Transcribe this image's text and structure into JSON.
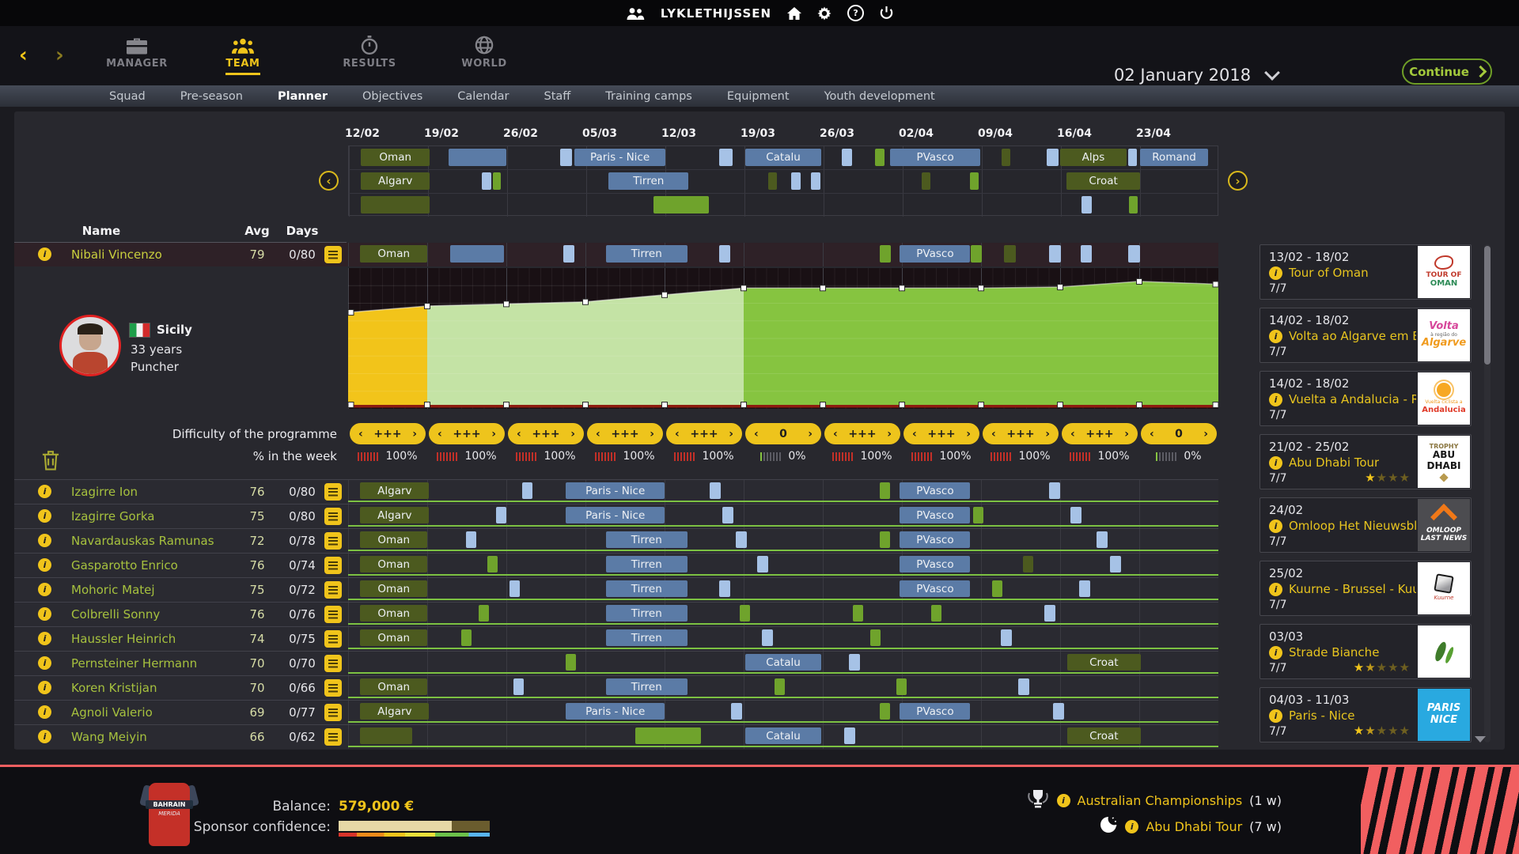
{
  "topbar": {
    "username": "LYKLETHIJSSEN"
  },
  "nav": {
    "back_glyph": "‹",
    "forward_glyph": "›",
    "items": [
      {
        "label": "MANAGER"
      },
      {
        "label": "TEAM"
      },
      {
        "label": "RESULTS"
      },
      {
        "label": "WORLD"
      }
    ],
    "date": "02 January 2018",
    "continue_label": "Continue"
  },
  "subnav": {
    "items": [
      "Squad",
      "Pre-season",
      "Planner",
      "Objectives",
      "Calendar",
      "Staff",
      "Training camps",
      "Equipment",
      "Youth development"
    ],
    "active": "Planner"
  },
  "timeline": {
    "prev_glyph": "‹",
    "next_glyph": "›",
    "weeks": [
      "12/02",
      "19/02",
      "26/02",
      "05/03",
      "12/03",
      "19/03",
      "26/03",
      "02/04",
      "09/04",
      "16/04",
      "23/04"
    ]
  },
  "mini_timeline": {
    "rows": [
      [
        {
          "l": 1.4,
          "w": 7.9,
          "c": "dg",
          "label": "Oman"
        },
        {
          "l": 11.5,
          "w": 6.6,
          "c": "bl"
        },
        {
          "l": 24.3,
          "w": 1.4,
          "c": "lb"
        },
        {
          "l": 26.0,
          "w": 10.4,
          "c": "bl",
          "label": "Paris - Nice"
        },
        {
          "l": 42.6,
          "w": 1.6,
          "c": "lb"
        },
        {
          "l": 45.6,
          "w": 8.8,
          "c": "bl",
          "label": "Catalu"
        },
        {
          "l": 56.7,
          "w": 1.2,
          "c": "lb"
        },
        {
          "l": 60.6,
          "w": 1.1,
          "c": "g"
        },
        {
          "l": 62.3,
          "w": 10.4,
          "c": "bl",
          "label": "PVasco"
        },
        {
          "l": 75.1,
          "w": 1.0,
          "c": "dg"
        },
        {
          "l": 80.3,
          "w": 1.4,
          "c": "lb"
        },
        {
          "l": 81.9,
          "w": 7.6,
          "c": "dg",
          "label": "Alps"
        },
        {
          "l": 89.7,
          "w": 1.0,
          "c": "lb"
        },
        {
          "l": 91.1,
          "w": 7.8,
          "c": "bl",
          "label": "Romand"
        }
      ],
      [
        {
          "l": 1.4,
          "w": 7.9,
          "c": "dg",
          "label": "Algarv"
        },
        {
          "l": 15.3,
          "w": 1.1,
          "c": "lb"
        },
        {
          "l": 16.6,
          "w": 0.9,
          "c": "g"
        },
        {
          "l": 29.9,
          "w": 9.2,
          "c": "bl",
          "label": "Tirren"
        },
        {
          "l": 48.3,
          "w": 1.0,
          "c": "dg"
        },
        {
          "l": 50.9,
          "w": 1.1,
          "c": "lb"
        },
        {
          "l": 53.2,
          "w": 1.1,
          "c": "lb"
        },
        {
          "l": 65.9,
          "w": 1.0,
          "c": "dg"
        },
        {
          "l": 71.5,
          "w": 1.0,
          "c": "g"
        },
        {
          "l": 82.6,
          "w": 8.5,
          "c": "dg",
          "label": "Croat"
        }
      ],
      [
        {
          "l": 1.4,
          "w": 7.9,
          "c": "dg"
        },
        {
          "l": 35.1,
          "w": 6.3,
          "c": "g"
        },
        {
          "l": 84.3,
          "w": 1.2,
          "c": "lb"
        },
        {
          "l": 89.8,
          "w": 1.0,
          "c": "g"
        }
      ]
    ]
  },
  "roster": {
    "columns": [
      "Name",
      "Avg",
      "Days"
    ]
  },
  "selected_rider": {
    "name": "Nibali Vincenzo",
    "avg": "79",
    "days": "0/80",
    "region": "Sicily",
    "age": "33 years",
    "type": "Puncher",
    "bars": [
      {
        "l": 1.4,
        "w": 7.7,
        "c": "dg",
        "label": "Oman"
      },
      {
        "l": 11.7,
        "w": 6.2,
        "c": "bl"
      },
      {
        "l": 24.7,
        "w": 1.3,
        "c": "lb"
      },
      {
        "l": 29.6,
        "w": 9.4,
        "c": "bl",
        "label": "Tirren"
      },
      {
        "l": 42.6,
        "w": 1.3,
        "c": "lb"
      },
      {
        "l": 61.1,
        "w": 1.3,
        "c": "g"
      },
      {
        "l": 63.4,
        "w": 8.1,
        "c": "bl",
        "label": "PVasco"
      },
      {
        "l": 71.5,
        "w": 1.3,
        "c": "g"
      },
      {
        "l": 75.4,
        "w": 1.3,
        "c": "dg"
      },
      {
        "l": 80.5,
        "w": 1.4,
        "c": "lb"
      },
      {
        "l": 84.2,
        "w": 1.3,
        "c": "lb"
      },
      {
        "l": 89.6,
        "w": 1.4,
        "c": "lb"
      }
    ],
    "chart": {
      "points": [
        0.685,
        0.73,
        0.745,
        0.76,
        0.81,
        0.858,
        0.858,
        0.858,
        0.858,
        0.865,
        0.905,
        0.885
      ],
      "colors": [
        "y",
        "lg",
        "lg",
        "lg",
        "lg",
        "g",
        "g",
        "g",
        "g",
        "g",
        "g"
      ]
    }
  },
  "difficulty": {
    "label": "Difficulty of the programme",
    "prev_glyph": "‹",
    "next_glyph": "›",
    "values": [
      "+++",
      "+++",
      "+++",
      "+++",
      "+++",
      "0",
      "+++",
      "+++",
      "+++",
      "+++",
      "0"
    ]
  },
  "week_percent": {
    "label": "% in the week",
    "values": [
      "100%",
      "100%",
      "100%",
      "100%",
      "100%",
      "0%",
      "100%",
      "100%",
      "100%",
      "100%",
      "0%"
    ]
  },
  "riders": [
    {
      "name": "Izagirre Ion",
      "avg": "76",
      "days": "0/80",
      "bars": [
        {
          "l": 1.4,
          "w": 7.9,
          "c": "dg",
          "label": "Algarv"
        },
        {
          "l": 20,
          "w": 1.2,
          "c": "lb"
        },
        {
          "l": 25,
          "w": 11.4,
          "c": "bl",
          "label": "Paris - Nice"
        },
        {
          "l": 41.5,
          "w": 1.3,
          "c": "lb"
        },
        {
          "l": 61.1,
          "w": 1.2,
          "c": "g"
        },
        {
          "l": 63.4,
          "w": 8.1,
          "c": "bl",
          "label": "PVasco"
        },
        {
          "l": 80.5,
          "w": 1.3,
          "c": "lb"
        }
      ]
    },
    {
      "name": "Izagirre Gorka",
      "avg": "75",
      "days": "0/80",
      "bars": [
        {
          "l": 1.4,
          "w": 7.9,
          "c": "dg",
          "label": "Algarv"
        },
        {
          "l": 17,
          "w": 1.2,
          "c": "lb"
        },
        {
          "l": 25,
          "w": 11.4,
          "c": "bl",
          "label": "Paris - Nice"
        },
        {
          "l": 43,
          "w": 1.3,
          "c": "lb"
        },
        {
          "l": 63.4,
          "w": 8.1,
          "c": "bl",
          "label": "PVasco"
        },
        {
          "l": 71.8,
          "w": 1.2,
          "c": "g"
        },
        {
          "l": 83,
          "w": 1.3,
          "c": "lb"
        }
      ]
    },
    {
      "name": "Navardauskas Ramunas",
      "avg": "72",
      "days": "0/78",
      "bars": [
        {
          "l": 1.4,
          "w": 7.7,
          "c": "dg",
          "label": "Oman"
        },
        {
          "l": 13.5,
          "w": 1.2,
          "c": "lb"
        },
        {
          "l": 29.6,
          "w": 9.4,
          "c": "bl",
          "label": "Tirren"
        },
        {
          "l": 44.5,
          "w": 1.3,
          "c": "lb"
        },
        {
          "l": 61.1,
          "w": 1.2,
          "c": "g"
        },
        {
          "l": 63.4,
          "w": 8.1,
          "c": "bl",
          "label": "PVasco"
        },
        {
          "l": 86,
          "w": 1.3,
          "c": "lb"
        }
      ]
    },
    {
      "name": "Gasparotto Enrico",
      "avg": "76",
      "days": "0/74",
      "bars": [
        {
          "l": 1.4,
          "w": 7.7,
          "c": "dg",
          "label": "Oman"
        },
        {
          "l": 16,
          "w": 1.2,
          "c": "g"
        },
        {
          "l": 29.6,
          "w": 9.4,
          "c": "bl",
          "label": "Tirren"
        },
        {
          "l": 47,
          "w": 1.3,
          "c": "lb"
        },
        {
          "l": 63.4,
          "w": 8.1,
          "c": "bl",
          "label": "PVasco"
        },
        {
          "l": 77.5,
          "w": 1.2,
          "c": "dg"
        },
        {
          "l": 87.5,
          "w": 1.3,
          "c": "lb"
        }
      ]
    },
    {
      "name": "Mohoric Matej",
      "avg": "75",
      "days": "0/72",
      "bars": [
        {
          "l": 1.4,
          "w": 7.7,
          "c": "dg",
          "label": "Oman"
        },
        {
          "l": 18.5,
          "w": 1.2,
          "c": "lb"
        },
        {
          "l": 29.6,
          "w": 9.4,
          "c": "bl",
          "label": "Tirren"
        },
        {
          "l": 42.6,
          "w": 1.3,
          "c": "lb"
        },
        {
          "l": 63.4,
          "w": 8.1,
          "c": "bl",
          "label": "PVasco"
        },
        {
          "l": 74,
          "w": 1.2,
          "c": "g"
        },
        {
          "l": 84,
          "w": 1.3,
          "c": "lb"
        }
      ]
    },
    {
      "name": "Colbrelli Sonny",
      "avg": "76",
      "days": "0/76",
      "bars": [
        {
          "l": 1.4,
          "w": 7.7,
          "c": "dg",
          "label": "Oman"
        },
        {
          "l": 15,
          "w": 1.2,
          "c": "g"
        },
        {
          "l": 29.6,
          "w": 9.4,
          "c": "bl",
          "label": "Tirren"
        },
        {
          "l": 45,
          "w": 1.2,
          "c": "g"
        },
        {
          "l": 58,
          "w": 1.2,
          "c": "g"
        },
        {
          "l": 67,
          "w": 1.2,
          "c": "g"
        },
        {
          "l": 80,
          "w": 1.3,
          "c": "lb"
        }
      ]
    },
    {
      "name": "Haussler Heinrich",
      "avg": "74",
      "days": "0/75",
      "bars": [
        {
          "l": 1.4,
          "w": 7.7,
          "c": "dg",
          "label": "Oman"
        },
        {
          "l": 13,
          "w": 1.2,
          "c": "g"
        },
        {
          "l": 29.6,
          "w": 9.4,
          "c": "bl",
          "label": "Tirren"
        },
        {
          "l": 47.5,
          "w": 1.3,
          "c": "lb"
        },
        {
          "l": 60,
          "w": 1.2,
          "c": "g"
        },
        {
          "l": 75,
          "w": 1.3,
          "c": "lb"
        }
      ]
    },
    {
      "name": "Pernsteiner Hermann",
      "avg": "70",
      "days": "0/70",
      "bars": [
        {
          "l": 25,
          "w": 1.2,
          "c": "g"
        },
        {
          "l": 45.6,
          "w": 8.8,
          "c": "bl",
          "label": "Catalu"
        },
        {
          "l": 57.5,
          "w": 1.3,
          "c": "lb"
        },
        {
          "l": 82.6,
          "w": 8.5,
          "c": "dg",
          "label": "Croat"
        }
      ]
    },
    {
      "name": "Koren Kristijan",
      "avg": "70",
      "days": "0/66",
      "bars": [
        {
          "l": 1.4,
          "w": 7.7,
          "c": "dg",
          "label": "Oman"
        },
        {
          "l": 19,
          "w": 1.2,
          "c": "lb"
        },
        {
          "l": 29.6,
          "w": 9.4,
          "c": "bl",
          "label": "Tirren"
        },
        {
          "l": 49,
          "w": 1.2,
          "c": "g"
        },
        {
          "l": 63,
          "w": 1.2,
          "c": "g"
        },
        {
          "l": 77,
          "w": 1.3,
          "c": "lb"
        }
      ]
    },
    {
      "name": "Agnoli Valerio",
      "avg": "69",
      "days": "0/77",
      "bars": [
        {
          "l": 1.4,
          "w": 7.9,
          "c": "dg",
          "label": "Algarv"
        },
        {
          "l": 25,
          "w": 11.4,
          "c": "bl",
          "label": "Paris - Nice"
        },
        {
          "l": 44,
          "w": 1.3,
          "c": "lb"
        },
        {
          "l": 61.1,
          "w": 1.2,
          "c": "g"
        },
        {
          "l": 63.4,
          "w": 8.1,
          "c": "bl",
          "label": "PVasco"
        },
        {
          "l": 81,
          "w": 1.3,
          "c": "lb"
        }
      ]
    },
    {
      "name": "Wang Meiyin",
      "avg": "66",
      "days": "0/62",
      "bars": [
        {
          "l": 1.4,
          "w": 6,
          "c": "dg"
        },
        {
          "l": 33,
          "w": 7.5,
          "c": "g"
        },
        {
          "l": 45.6,
          "w": 8.8,
          "c": "bl",
          "label": "Catalu"
        },
        {
          "l": 57,
          "w": 1.3,
          "c": "lb"
        },
        {
          "l": 82.6,
          "w": 8.5,
          "c": "dg",
          "label": "Croat"
        }
      ]
    }
  ],
  "sidebar": {
    "star_char": "★",
    "events": [
      {
        "dates": "13/02 - 18/02",
        "name": "Tour of Oman",
        "days": "7/7",
        "logo": {
          "type": "oman",
          "lines": [
            {
              "t": "TOUR OF",
              "c": "#c0392b",
              "s": 9,
              "b": 1
            },
            {
              "t": "OMAN",
              "c": "#2e8b57",
              "s": 10,
              "b": 1
            }
          ]
        }
      },
      {
        "dates": "14/02 - 18/02",
        "name": "Volta ao Algarve em Bic..",
        "days": "7/7",
        "logo": {
          "type": "algarve",
          "lines": [
            {
              "t": "Volta",
              "c": "#d6479a",
              "s": 13,
              "b": 1,
              "i": 1
            },
            {
              "t": "à região do",
              "c": "#666",
              "s": 6
            },
            {
              "t": "Algarve",
              "c": "#f09b1e",
              "s": 13,
              "b": 1,
              "i": 1
            }
          ]
        }
      },
      {
        "dates": "14/02 - 18/02",
        "name": "Vuelta a Andalucia - Ru..",
        "days": "7/7",
        "logo": {
          "type": "andalucia",
          "lines": [
            {
              "t": "Vuelta ciclista a",
              "c": "#f09b1e",
              "s": 6
            },
            {
              "t": "Andalucia",
              "c": "#e03a28",
              "s": 10,
              "b": 1
            }
          ]
        }
      },
      {
        "dates": "21/02 - 25/02",
        "name": "Abu Dhabi Tour",
        "days": "7/7",
        "stars": {
          "f": 1,
          "h": 0,
          "e": 3
        },
        "logo": {
          "type": "abudhabi",
          "lines": [
            {
              "t": "TROPHY",
              "c": "#8a7640",
              "s": 8,
              "b": 1
            },
            {
              "t": "ABU",
              "c": "#151515",
              "s": 12,
              "b": 1
            },
            {
              "t": "DHABI",
              "c": "#151515",
              "s": 12,
              "b": 1
            }
          ]
        }
      },
      {
        "dates": "24/02",
        "name": "Omloop Het Nieuwsbl..",
        "days": "7/7",
        "logo": {
          "type": "omloop",
          "lines": [
            {
              "t": "OMLOOP",
              "c": "#fff",
              "s": 9,
              "b": 1,
              "i": 1
            },
            {
              "t": "LAST NEWS",
              "c": "#fff",
              "s": 9,
              "b": 1,
              "i": 1
            }
          ]
        }
      },
      {
        "dates": "25/02",
        "name": "Kuurne - Brussel - Kuur..",
        "days": "7/7",
        "logo": {
          "type": "kuurne",
          "lines": [
            {
              "t": "Kuurne",
              "c": "#c0392b",
              "s": 7,
              "i": 1
            }
          ]
        }
      },
      {
        "dates": "03/03",
        "name": "Strade Bianche",
        "days": "7/7",
        "stars": {
          "f": 1,
          "h": 1,
          "e": 3
        },
        "logo": {
          "type": "strade",
          "lines": []
        }
      },
      {
        "dates": "04/03 - 11/03",
        "name": "Paris - Nice",
        "days": "7/7",
        "stars": {
          "f": 1,
          "h": 1,
          "e": 3
        },
        "logo": {
          "type": "parisnice",
          "lines": [
            {
              "t": "PARIS",
              "c": "#fff",
              "s": 13,
              "b": 1,
              "i": 1
            },
            {
              "t": "NICE",
              "c": "#fff",
              "s": 13,
              "b": 1,
              "i": 1
            }
          ]
        }
      }
    ]
  },
  "bottombar": {
    "balance_label": "Balance:",
    "balance_value": "579,000 €",
    "sponsor_label": "Sponsor confidence:",
    "sponsor_fill_percent": 75,
    "jersey": {
      "line1": "BAHRAIN",
      "line2": "MERIDA"
    },
    "events": [
      {
        "icon": "trophy",
        "name": "Australian Championships",
        "weeks": "(1 w)"
      },
      {
        "icon": "clock",
        "name": "Abu Dhabi Tour",
        "weeks": "(7 w)"
      }
    ]
  }
}
